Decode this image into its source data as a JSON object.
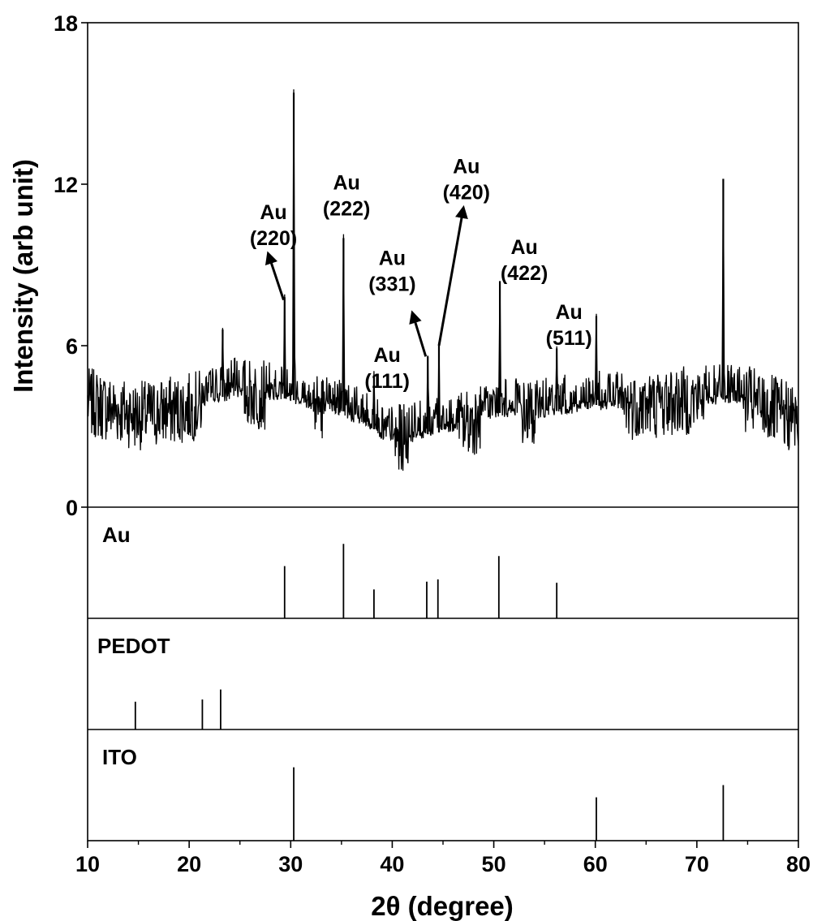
{
  "chart_data": {
    "type": "line",
    "xlabel": "2θ (degree)",
    "ylabel": "Intensity (arb unit)",
    "xlim": [
      10,
      80
    ],
    "ylim": [
      0,
      18
    ],
    "x_ticks": [
      10,
      20,
      30,
      40,
      50,
      60,
      70,
      80
    ],
    "y_ticks": [
      0,
      6,
      12,
      18
    ],
    "grid": false,
    "noise_baseline": [
      [
        10,
        3.9
      ],
      [
        15,
        3.4
      ],
      [
        20,
        3.7
      ],
      [
        25,
        4.3
      ],
      [
        30,
        4.0
      ],
      [
        35,
        3.6
      ],
      [
        40,
        2.5
      ],
      [
        45,
        2.8
      ],
      [
        50,
        3.5
      ],
      [
        55,
        3.5
      ],
      [
        60,
        3.8
      ],
      [
        65,
        3.8
      ],
      [
        70,
        4.0
      ],
      [
        75,
        4.0
      ],
      [
        80,
        3.2
      ]
    ],
    "noise_amplitude": 1.3,
    "peaks": [
      {
        "x": 23.3,
        "y": 6.6
      },
      {
        "x": 29.4,
        "y": 7.8
      },
      {
        "x": 30.3,
        "y": 15.4
      },
      {
        "x": 35.2,
        "y": 10.0
      },
      {
        "x": 38.2,
        "y": 4.9
      },
      {
        "x": 43.5,
        "y": 5.6
      },
      {
        "x": 44.6,
        "y": 6.0
      },
      {
        "x": 50.6,
        "y": 8.4
      },
      {
        "x": 56.2,
        "y": 5.9
      },
      {
        "x": 60.1,
        "y": 7.1
      },
      {
        "x": 72.6,
        "y": 12.2
      }
    ],
    "annotations": [
      {
        "id": "au-220",
        "line1": "Au",
        "line2": "(220)",
        "x": 28.3,
        "y": 10.7,
        "arrow_from": [
          29.3,
          7.7
        ],
        "arrow_to": [
          27.8,
          9.4
        ]
      },
      {
        "id": "au-222",
        "line1": "Au",
        "line2": "(222)",
        "x": 35.5,
        "y": 11.8
      },
      {
        "id": "au-331",
        "line1": "Au",
        "line2": "(331)",
        "x": 40.0,
        "y": 9.0,
        "arrow_from": [
          43.3,
          5.6
        ],
        "arrow_to": [
          42.0,
          7.2
        ]
      },
      {
        "id": "au-111",
        "line1": "Au",
        "line2": "(111)",
        "x": 39.5,
        "y": 5.4
      },
      {
        "id": "au-420",
        "line1": "Au",
        "line2": "(420)",
        "x": 47.3,
        "y": 12.4,
        "arrow_from": [
          44.6,
          6.0
        ],
        "arrow_to": [
          47.0,
          11.1
        ]
      },
      {
        "id": "au-422",
        "line1": "Au",
        "line2": "(422)",
        "x": 53.0,
        "y": 9.4
      },
      {
        "id": "au-511",
        "line1": "Au",
        "line2": "(511)",
        "x": 57.4,
        "y": 7.0
      }
    ],
    "reference_panels": [
      {
        "label": "Au",
        "lines": [
          {
            "x": 29.4,
            "h": 0.47
          },
          {
            "x": 35.2,
            "h": 0.67
          },
          {
            "x": 38.2,
            "h": 0.26
          },
          {
            "x": 43.4,
            "h": 0.33
          },
          {
            "x": 44.5,
            "h": 0.35
          },
          {
            "x": 50.5,
            "h": 0.56
          },
          {
            "x": 56.2,
            "h": 0.32
          }
        ]
      },
      {
        "label": "PEDOT",
        "lines": [
          {
            "x": 14.7,
            "h": 0.25
          },
          {
            "x": 21.3,
            "h": 0.27
          },
          {
            "x": 23.1,
            "h": 0.36
          }
        ]
      },
      {
        "label": "ITO",
        "lines": [
          {
            "x": 30.3,
            "h": 0.66
          },
          {
            "x": 60.1,
            "h": 0.39
          },
          {
            "x": 72.6,
            "h": 0.5
          }
        ]
      }
    ]
  }
}
